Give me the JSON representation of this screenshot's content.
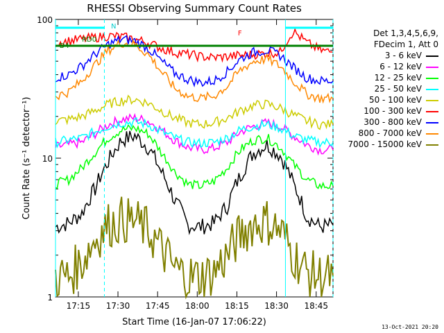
{
  "chart_data": {
    "type": "line",
    "title": "RHESSI Observing Summary Count Rates",
    "xlabel": "Start Time (16-Jan-07 17:06:22)",
    "ylabel": "Count Rate (s⁻¹ detector⁻¹)",
    "y_scale": "log",
    "xlim_minutes_after_start": [
      0,
      105
    ],
    "x_tick_labels": [
      "17:15",
      "17:30",
      "17:45",
      "18:00",
      "18:15",
      "18:30",
      "18:45"
    ],
    "y_tick_labels": [
      "1",
      "10",
      "100"
    ],
    "ylim": [
      1,
      100
    ],
    "annotations": [
      "N",
      "RD0",
      "D4",
      "F"
    ],
    "legend": {
      "header": [
        "Det 1,3,4,5,6,9,",
        "FDecim 1, Att 0"
      ],
      "placement": "right"
    },
    "series": [
      {
        "name": "3 - 6 keV",
        "color": "#000000",
        "values": [
          3.2,
          3.4,
          4.0,
          6.0,
          9.5,
          13.5,
          14.5,
          12.0,
          8.0,
          5.0,
          3.3,
          3.2,
          3.4,
          4.5,
          7.5,
          11.0,
          12.5,
          10.5,
          6.5,
          3.8,
          3.2,
          3.3
        ]
      },
      {
        "name": "6 - 12 keV",
        "color": "#ff00ff",
        "values": [
          12.0,
          12.5,
          13.0,
          15.0,
          17.5,
          19.0,
          19.5,
          18.5,
          16.0,
          13.5,
          12.0,
          11.5,
          11.8,
          13.0,
          15.5,
          17.0,
          18.0,
          17.0,
          14.5,
          12.5,
          11.5,
          11.5
        ]
      },
      {
        "name": "12 - 25 keV",
        "color": "#00ff00",
        "values": [
          6.5,
          7.0,
          8.5,
          11.0,
          14.0,
          16.0,
          16.5,
          15.0,
          11.0,
          8.0,
          6.5,
          6.3,
          6.8,
          8.5,
          11.5,
          13.5,
          14.0,
          12.0,
          9.0,
          7.0,
          6.3,
          6.3
        ]
      },
      {
        "name": "25 - 50 keV",
        "color": "#00ffff",
        "values": [
          13.0,
          13.5,
          14.0,
          15.5,
          17.0,
          18.0,
          18.2,
          17.5,
          15.5,
          14.0,
          13.0,
          12.8,
          13.0,
          14.0,
          16.0,
          17.0,
          17.5,
          16.5,
          14.5,
          13.5,
          13.0,
          13.0
        ]
      },
      {
        "name": "50 - 100 keV",
        "color": "#cccc00",
        "values": [
          18.5,
          19.0,
          20.0,
          22.0,
          24.5,
          26.0,
          26.5,
          25.0,
          22.0,
          19.5,
          18.0,
          17.5,
          18.0,
          19.5,
          22.0,
          24.0,
          24.5,
          23.0,
          20.5,
          18.5,
          17.5,
          17.5
        ]
      },
      {
        "name": "100 - 300 keV",
        "color": "#ff0000",
        "values": [
          68,
          70,
          72,
          74,
          76,
          75,
          72,
          68,
          62,
          58,
          56,
          54,
          53,
          54,
          55,
          56,
          57,
          58,
          82,
          68,
          60,
          58
        ]
      },
      {
        "name": "300 - 800 keV",
        "color": "#0000ff",
        "values": [
          38,
          40,
          46,
          56,
          66,
          72,
          70,
          62,
          50,
          41,
          37,
          35,
          36,
          42,
          52,
          58,
          60,
          55,
          45,
          38,
          36,
          36
        ]
      },
      {
        "name": "800 - 7000 keV",
        "color": "#ff8800",
        "values": [
          28,
          30,
          36,
          47,
          60,
          68,
          66,
          56,
          42,
          32,
          28,
          27,
          28,
          33,
          43,
          50,
          52,
          46,
          36,
          29,
          27,
          27
        ]
      },
      {
        "name": "7000 - 15000 keV",
        "color": "#808000",
        "values": [
          1.4,
          1.4,
          1.8,
          2.6,
          3.3,
          3.6,
          3.5,
          3.0,
          2.2,
          1.6,
          1.4,
          1.4,
          1.5,
          2.0,
          2.8,
          3.4,
          3.5,
          3.0,
          2.0,
          1.5,
          1.4,
          1.4
        ]
      }
    ],
    "x_minutes": [
      0,
      5,
      10,
      15,
      20,
      25,
      30,
      35,
      40,
      45,
      50,
      55,
      60,
      65,
      70,
      75,
      80,
      85,
      90,
      95,
      100,
      105
    ]
  },
  "footer_date": "13-Oct-2021 20:20"
}
